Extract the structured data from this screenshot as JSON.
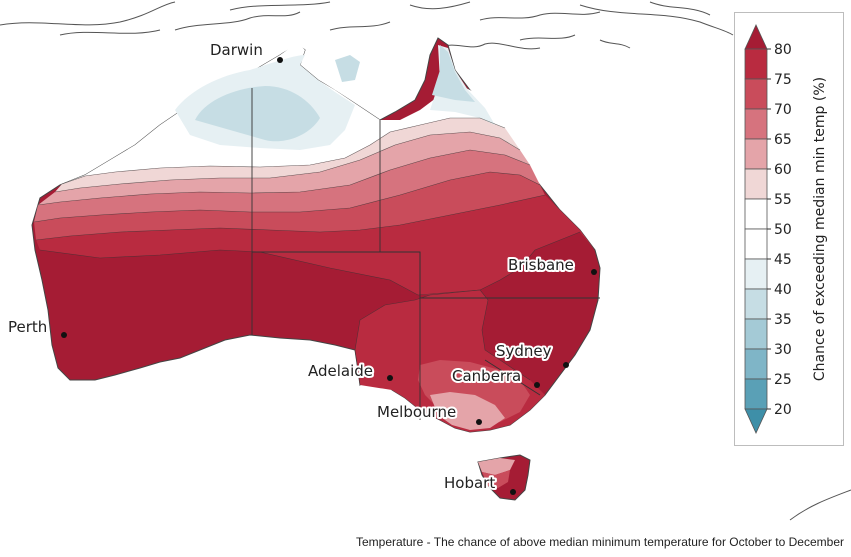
{
  "map": {
    "cities": [
      {
        "name": "Darwin"
      },
      {
        "name": "Brisbane"
      },
      {
        "name": "Perth"
      },
      {
        "name": "Sydney"
      },
      {
        "name": "Adelaide"
      },
      {
        "name": "Canberra"
      },
      {
        "name": "Melbourne"
      },
      {
        "name": "Hobart"
      }
    ]
  },
  "legend": {
    "title": "Chance of exceeding median min temp (%)",
    "ticks": [
      "80",
      "75",
      "70",
      "65",
      "60",
      "55",
      "50",
      "45",
      "40",
      "35",
      "30",
      "25",
      "20"
    ],
    "colors": {
      "above_80": "#a51c34",
      "75-80": "#b92b40",
      "70-75": "#c94c5b",
      "65-70": "#d6737e",
      "60-65": "#e4a4a9",
      "55-60": "#f0d7d6",
      "50-55": "#ffffff",
      "45-50": "#ffffff",
      "40-45": "#e6f0f3",
      "35-40": "#c6dde4",
      "30-35": "#a4cad6",
      "25-30": "#7fb5c7",
      "20-25": "#5aa0b6",
      "below_20": "#3e8fa8"
    }
  },
  "caption": "Temperature - The chance of above median minimum temperature for October to December"
}
